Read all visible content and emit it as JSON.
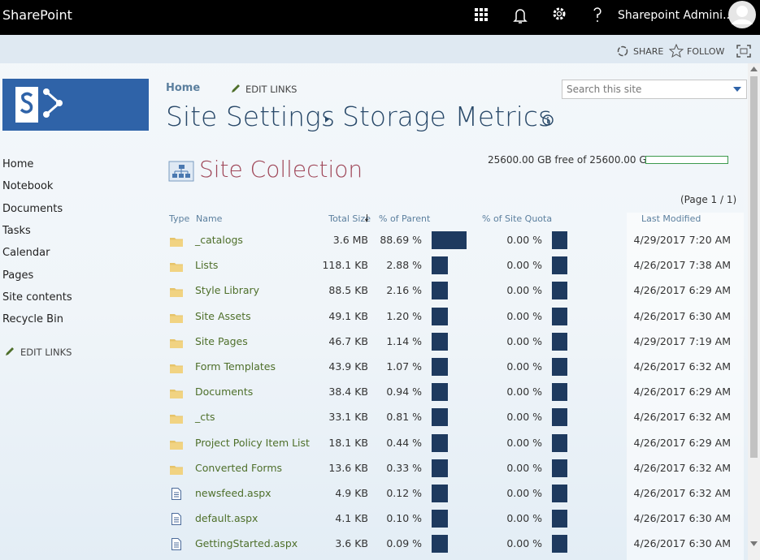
{
  "top_bar": {
    "brand": "SharePoint",
    "user": "Sharepoint Admini..."
  },
  "action_bar": {
    "share": "SHARE",
    "follow": "FOLLOW"
  },
  "top_nav": {
    "home": "Home",
    "edit_links": "EDIT LINKS"
  },
  "search": {
    "placeholder": "Search this site"
  },
  "breadcrumb": {
    "parent": "Site Settings",
    "current": "Storage Metrics"
  },
  "left_nav": {
    "items": [
      "Home",
      "Notebook",
      "Documents",
      "Tasks",
      "Calendar",
      "Pages",
      "Site contents",
      "Recycle Bin"
    ],
    "edit_links": "EDIT LINKS"
  },
  "section": {
    "title": "Site Collection",
    "quota": "25600.00 GB free of 25600.00 GB",
    "paging": "(Page 1 / 1)"
  },
  "table": {
    "columns": [
      "Type",
      "Name",
      "Total Size",
      "% of Parent",
      "% of Site Quota",
      "Last Modified"
    ],
    "rows": [
      {
        "type": "folder",
        "name": "_catalogs",
        "size": "3.6 MB",
        "parent": {
          "value": 88.69,
          "label": "88.69 %"
        },
        "quota": {
          "value": 0,
          "label": "0.00 %"
        },
        "modified": "4/29/2017 7:20 AM"
      },
      {
        "type": "folder",
        "name": "Lists",
        "size": "118.1 KB",
        "parent": {
          "value": 2.88,
          "label": "2.88 %"
        },
        "quota": {
          "value": 0,
          "label": "0.00 %"
        },
        "modified": "4/26/2017 7:38 AM"
      },
      {
        "type": "folder",
        "name": "Style Library",
        "size": "88.5 KB",
        "parent": {
          "value": 2.16,
          "label": "2.16 %"
        },
        "quota": {
          "value": 0,
          "label": "0.00 %"
        },
        "modified": "4/26/2017 6:29 AM"
      },
      {
        "type": "folder",
        "name": "Site Assets",
        "size": "49.1 KB",
        "parent": {
          "value": 1.2,
          "label": "1.20 %"
        },
        "quota": {
          "value": 0,
          "label": "0.00 %"
        },
        "modified": "4/26/2017 6:30 AM"
      },
      {
        "type": "folder",
        "name": "Site Pages",
        "size": "46.7 KB",
        "parent": {
          "value": 1.14,
          "label": "1.14 %"
        },
        "quota": {
          "value": 0,
          "label": "0.00 %"
        },
        "modified": "4/29/2017 7:19 AM"
      },
      {
        "type": "folder",
        "name": "Form Templates",
        "size": "43.9 KB",
        "parent": {
          "value": 1.07,
          "label": "1.07 %"
        },
        "quota": {
          "value": 0,
          "label": "0.00 %"
        },
        "modified": "4/26/2017 6:32 AM"
      },
      {
        "type": "folder",
        "name": "Documents",
        "size": "38.4 KB",
        "parent": {
          "value": 0.94,
          "label": "0.94 %"
        },
        "quota": {
          "value": 0,
          "label": "0.00 %"
        },
        "modified": "4/26/2017 6:29 AM"
      },
      {
        "type": "folder",
        "name": "_cts",
        "size": "33.1 KB",
        "parent": {
          "value": 0.81,
          "label": "0.81 %"
        },
        "quota": {
          "value": 0,
          "label": "0.00 %"
        },
        "modified": "4/26/2017 6:32 AM"
      },
      {
        "type": "folder",
        "name": "Project Policy Item List",
        "size": "18.1 KB",
        "parent": {
          "value": 0.44,
          "label": "0.44 %"
        },
        "quota": {
          "value": 0,
          "label": "0.00 %"
        },
        "modified": "4/26/2017 6:29 AM"
      },
      {
        "type": "folder",
        "name": "Converted Forms",
        "size": "13.6 KB",
        "parent": {
          "value": 0.33,
          "label": "0.33 %"
        },
        "quota": {
          "value": 0,
          "label": "0.00 %"
        },
        "modified": "4/26/2017 6:32 AM"
      },
      {
        "type": "file",
        "name": "newsfeed.aspx",
        "size": "4.9 KB",
        "parent": {
          "value": 0.12,
          "label": "0.12 %"
        },
        "quota": {
          "value": 0,
          "label": "0.00 %"
        },
        "modified": "4/26/2017 6:32 AM"
      },
      {
        "type": "file",
        "name": "default.aspx",
        "size": "4.1 KB",
        "parent": {
          "value": 0.1,
          "label": "0.10 %"
        },
        "quota": {
          "value": 0,
          "label": "0.00 %"
        },
        "modified": "4/26/2017 6:30 AM"
      },
      {
        "type": "file",
        "name": "GettingStarted.aspx",
        "size": "3.6 KB",
        "parent": {
          "value": 0.09,
          "label": "0.09 %"
        },
        "quota": {
          "value": 0,
          "label": "0.00 %"
        },
        "modified": "4/26/2017 6:30 AM"
      }
    ]
  }
}
